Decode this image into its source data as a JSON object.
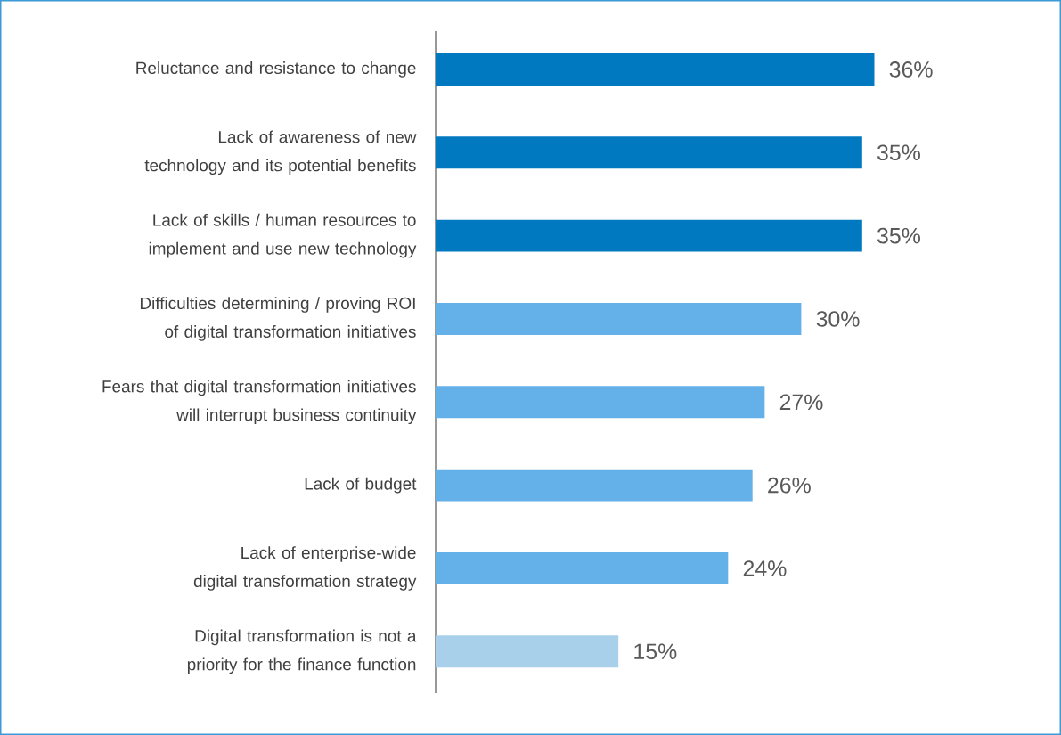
{
  "chart_data": {
    "type": "bar",
    "orientation": "horizontal",
    "categories": [
      "Reluctance and resistance to change",
      "Lack of awareness of new technology and its potential benefits",
      "Lack of skills / human resources to implement and use new technology",
      "Difficulties determining / proving ROI of digital transformation initiatives",
      "Fears that digital transformation initiatives will interrupt business continuity",
      "Lack of budget",
      "Lack of enterprise-wide digital transformation strategy",
      "Digital transformation is not a priority for the finance function"
    ],
    "values": [
      36,
      35,
      35,
      30,
      27,
      26,
      24,
      15
    ],
    "colors": [
      "#0079c1",
      "#0079c1",
      "#0079c1",
      "#64b0e8",
      "#64b0e8",
      "#64b0e8",
      "#64b0e8",
      "#a9d0ea"
    ],
    "value_labels": [
      "36%",
      "35%",
      "35%",
      "30%",
      "27%",
      "26%",
      "24%",
      "15%"
    ]
  }
}
